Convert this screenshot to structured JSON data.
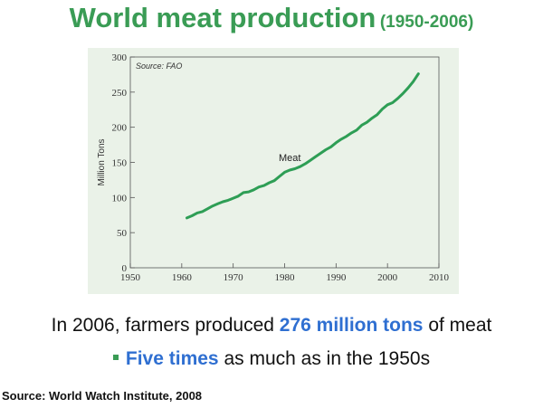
{
  "title": {
    "main": "World meat production",
    "range": "(1950-2006)"
  },
  "headline": {
    "prefix": "In 2006, farmers produced ",
    "highlight": "276 million tons",
    "suffix": " of meat"
  },
  "bullet": {
    "highlight": "Five times",
    "suffix": " as much as in the 1950s"
  },
  "footer": {
    "source": "Source: World Watch Institute, 2008"
  },
  "colors": {
    "title": "#3a9c55",
    "highlight": "#2f6fd1",
    "line": "#2e9e55",
    "panel": "#eaf2e8"
  },
  "chart_data": {
    "type": "line",
    "title": "",
    "source_note": "Source: FAO",
    "xlabel": "",
    "ylabel": "Million Tons",
    "xlim": [
      1950,
      2010
    ],
    "ylim": [
      0,
      300
    ],
    "xticks": [
      1950,
      1960,
      1970,
      1980,
      1990,
      2000,
      2010
    ],
    "yticks": [
      0,
      50,
      100,
      150,
      200,
      250,
      300
    ],
    "grid": false,
    "series": [
      {
        "name": "Meat",
        "x": [
          1961,
          1962,
          1963,
          1964,
          1965,
          1966,
          1967,
          1968,
          1969,
          1970,
          1971,
          1972,
          1973,
          1974,
          1975,
          1976,
          1977,
          1978,
          1979,
          1980,
          1981,
          1982,
          1983,
          1984,
          1985,
          1986,
          1987,
          1988,
          1989,
          1990,
          1991,
          1992,
          1993,
          1994,
          1995,
          1996,
          1997,
          1998,
          1999,
          2000,
          2001,
          2002,
          2003,
          2004,
          2005,
          2006
        ],
        "values": [
          71,
          74,
          78,
          80,
          84,
          88,
          91,
          94,
          96,
          99,
          102,
          107,
          108,
          111,
          115,
          117,
          121,
          124,
          130,
          136,
          139,
          141,
          144,
          148,
          153,
          158,
          163,
          168,
          172,
          178,
          183,
          187,
          192,
          196,
          203,
          207,
          213,
          218,
          226,
          232,
          235,
          241,
          248,
          256,
          265,
          276
        ]
      }
    ]
  }
}
